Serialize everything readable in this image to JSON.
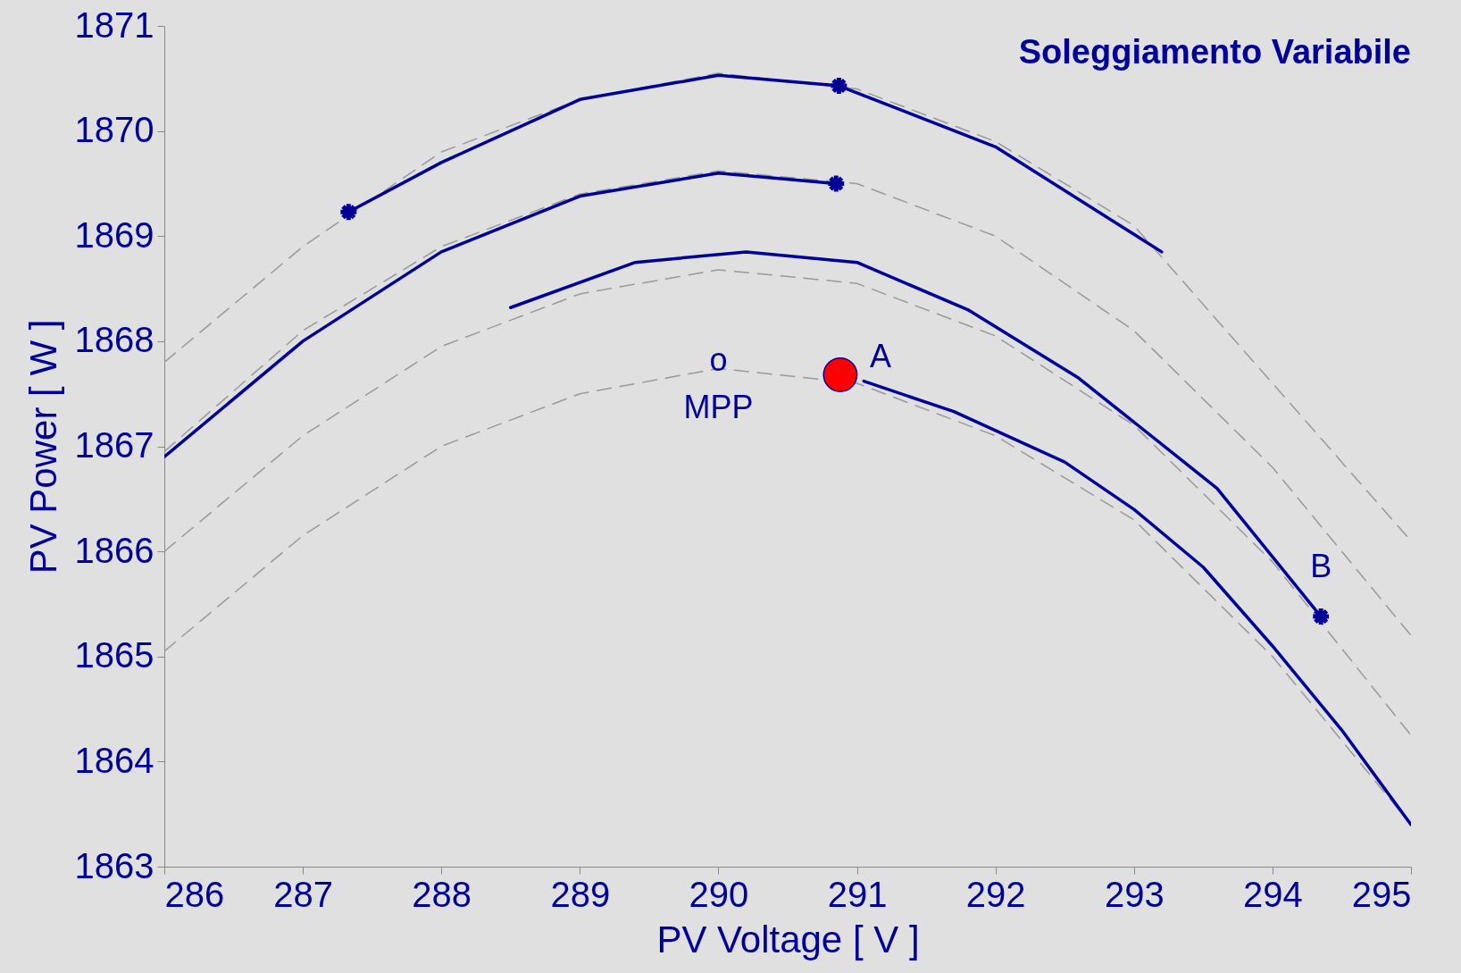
{
  "chart_data": {
    "type": "line",
    "title": "Soleggiamento Variabile",
    "xlabel": "PV Voltage [ V ]",
    "ylabel": "PV Power [ W ]",
    "xlim": [
      286,
      295
    ],
    "xticks": [
      286,
      287,
      288,
      289,
      290,
      291,
      292,
      293,
      294,
      295
    ],
    "ylim": [
      1863,
      1871
    ],
    "yticks": [
      1863,
      1864,
      1865,
      1866,
      1867,
      1868,
      1869,
      1870,
      1871
    ],
    "series": [
      {
        "color": "#999999",
        "line_style": "dashed",
        "x": [
          286,
          287,
          288,
          289,
          290,
          291,
          292,
          293,
          294,
          295
        ],
        "values": [
          1867.8,
          1868.9,
          1869.8,
          1870.3,
          1870.55,
          1870.4,
          1869.9,
          1869.1,
          1867.6,
          1866.1
        ]
      },
      {
        "color": "#999999",
        "line_style": "dashed",
        "x": [
          286,
          287,
          288,
          289,
          290,
          291,
          292,
          293,
          294,
          295
        ],
        "values": [
          1866.95,
          1868.1,
          1868.9,
          1869.4,
          1869.62,
          1869.5,
          1869.0,
          1868.1,
          1866.8,
          1865.2
        ]
      },
      {
        "color": "#999999",
        "line_style": "dashed",
        "x": [
          286,
          287,
          288,
          289,
          290,
          291,
          292,
          293,
          294,
          295
        ],
        "values": [
          1866.0,
          1867.1,
          1867.95,
          1868.45,
          1868.68,
          1868.55,
          1868.05,
          1867.2,
          1865.9,
          1864.25
        ]
      },
      {
        "color": "#999999",
        "line_style": "dashed",
        "x": [
          286,
          287,
          288,
          289,
          290,
          291,
          292,
          293,
          294,
          295
        ],
        "values": [
          1865.05,
          1866.15,
          1867.0,
          1867.5,
          1867.74,
          1867.6,
          1867.1,
          1866.3,
          1865.0,
          1863.4
        ]
      },
      {
        "color": "#000099",
        "line_style": "solid",
        "x": [
          291.05,
          291.7,
          292.5,
          293.0,
          293.5,
          294.0,
          294.5,
          295.0
        ],
        "values": [
          1867.62,
          1867.33,
          1866.85,
          1866.4,
          1865.85,
          1865.1,
          1864.3,
          1863.4
        ]
      },
      {
        "color": "#000099",
        "line_style": "solid",
        "x": [
          288.5,
          289.4,
          290.2,
          291.0,
          291.8,
          292.6,
          293.6,
          294.35
        ],
        "values": [
          1868.32,
          1868.75,
          1868.85,
          1868.75,
          1868.3,
          1867.65,
          1866.6,
          1865.38
        ]
      },
      {
        "color": "#000099",
        "line_style": "solid",
        "x": [
          286,
          287,
          288,
          289,
          290,
          290.85
        ],
        "values": [
          1866.9,
          1868.0,
          1868.85,
          1869.38,
          1869.6,
          1869.5
        ]
      },
      {
        "color": "#000099",
        "line_style": "solid",
        "x": [
          287.33,
          288,
          289,
          290,
          290.87,
          292,
          293.2
        ],
        "values": [
          1869.23,
          1869.7,
          1870.3,
          1870.53,
          1870.43,
          1869.85,
          1868.85
        ]
      },
      {
        "type": "scatter",
        "color": "#000099",
        "marker": "cross",
        "x": [
          287.33,
          290.87,
          290.85,
          294.35
        ],
        "values": [
          1869.23,
          1870.43,
          1869.5,
          1865.38
        ]
      },
      {
        "type": "scatter",
        "color": "#ff0000",
        "marker": "circle",
        "x": [
          290.88
        ],
        "values": [
          1867.68
        ]
      }
    ],
    "annotations": [
      {
        "text": "A",
        "x": 290.88,
        "y": 1867.68
      },
      {
        "text": "B",
        "x": 294.35,
        "y": 1865.38
      },
      {
        "text": "o",
        "x": 290,
        "y": 1867.74
      },
      {
        "text": "MPP",
        "x": 290,
        "y": 1867.74
      }
    ]
  }
}
